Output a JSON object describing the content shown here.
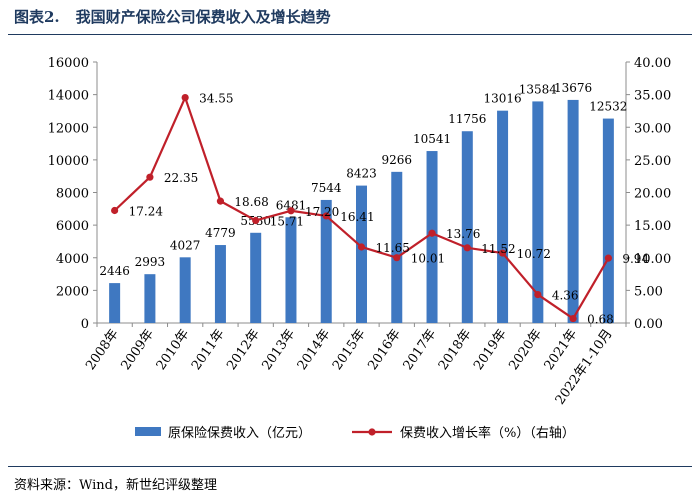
{
  "header": {
    "figure_number": "图表2.",
    "title": "我国财产保险公司保费收入及增长趋势"
  },
  "footer": {
    "source": "资料来源：Wind，新世纪评级整理"
  },
  "colors": {
    "bar": "#3f78c1",
    "line": "#c0202a",
    "accent": "#1f3a5f"
  },
  "chart_data": {
    "type": "bar",
    "categories": [
      "2008年",
      "2009年",
      "2010年",
      "2011年",
      "2012年",
      "2013年",
      "2014年",
      "2015年",
      "2016年",
      "2017年",
      "2018年",
      "2019年",
      "2020年",
      "2021年",
      "2022年1-10月"
    ],
    "series": [
      {
        "name": "原保险保费收入（亿元）",
        "type": "bar",
        "axis": "left",
        "values": [
          2446,
          2993,
          4027,
          4779,
          5530,
          6481,
          7544,
          8423,
          9266,
          10541,
          11756,
          13016,
          13584,
          13676,
          12532
        ]
      },
      {
        "name": "保费收入增长率（%）（右轴）",
        "type": "line",
        "axis": "right",
        "values": [
          17.24,
          22.35,
          34.55,
          18.68,
          15.71,
          17.2,
          16.41,
          11.65,
          10.01,
          13.76,
          11.52,
          10.72,
          4.36,
          0.68,
          9.94
        ]
      }
    ],
    "bar_labels": [
      "2446",
      "2993",
      "4027",
      "4779",
      "5530",
      "6481",
      "7544",
      "8423",
      "9266",
      "10541",
      "11756",
      "13016",
      "13584",
      "13676",
      "12532"
    ],
    "line_labels": [
      "17.24",
      "22.35",
      "34.55",
      "18.68",
      "15.71",
      "17.20",
      "16.41",
      "11.65",
      "10.01",
      "13.76",
      "11.52",
      "10.72",
      "4.36",
      "0.68",
      "9.94"
    ],
    "y_left": {
      "min": 0,
      "max": 16000,
      "ticks": [
        "0",
        "2000",
        "4000",
        "6000",
        "8000",
        "10000",
        "12000",
        "14000",
        "16000"
      ]
    },
    "y_right": {
      "min": 0,
      "max": 40,
      "ticks": [
        "0.00",
        "5.00",
        "10.00",
        "15.00",
        "20.00",
        "25.00",
        "30.00",
        "35.00",
        "40.00"
      ]
    },
    "grid": false,
    "legend_position": "bottom"
  }
}
